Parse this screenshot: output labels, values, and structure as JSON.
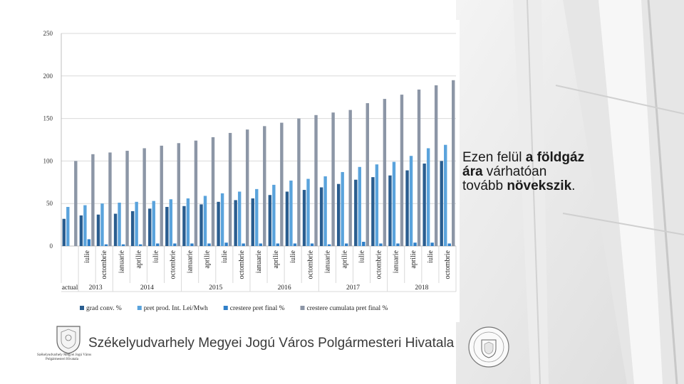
{
  "side_text": {
    "part1": "Ezen felül ",
    "bold1": "a földgáz",
    "bold2": "ára",
    "part2": " várhatóan",
    "part3": "tovább ",
    "bold3": "növekszik",
    "part4": "."
  },
  "footer": {
    "title": "Székelyudvarhely Megyei Jogú Város Polgármesteri Hivatala",
    "logo_caption_line1": "Székelyudvarhely Megyei Jogú Város",
    "logo_caption_line2": "Polgármesteri Hivatala"
  },
  "icons": {
    "left_logo": "city-crest-icon",
    "right_seal": "official-seal-icon"
  },
  "colors": {
    "grad_conv": "#2a5d8f",
    "pret_prod": "#5aa3dc",
    "crestere_pret_final": "#2f7fc8",
    "crestere_cumulata": "#8c96a6"
  },
  "chart_data": {
    "type": "bar",
    "ylim": [
      0,
      250
    ],
    "yticks": [
      0,
      50,
      100,
      150,
      200,
      250
    ],
    "grid": true,
    "legend_position": "bottom",
    "categories": [
      "actual",
      "iulie",
      "octombrie",
      "ianuarie",
      "aprilie",
      "iulie",
      "octombrie",
      "ianuarie",
      "aprilie",
      "iulie",
      "octombrie",
      "ianuarie",
      "aprilie",
      "iulie",
      "octombrie",
      "ianuarie",
      "aprilie",
      "iulie",
      "octombrie",
      "ianuarie",
      "aprilie",
      "iulie",
      "octombrie"
    ],
    "category_labels": [
      "",
      "iulie",
      "octombrie",
      "ianuarie",
      "aprilie",
      "iulie",
      "octombrie",
      "ianuarie",
      "aprilie",
      "iulie",
      "octombrie",
      "ianuarie",
      "aprilie",
      "iulie",
      "octombrie",
      "ianuarie",
      "aprilie",
      "iulie",
      "octombrie",
      "ianuarie",
      "aprilie",
      "iulie",
      "octombrie"
    ],
    "year_groups": [
      {
        "label": "actual",
        "start": 0,
        "end": 0
      },
      {
        "label": "2013",
        "start": 1,
        "end": 2
      },
      {
        "label": "2014",
        "start": 3,
        "end": 6
      },
      {
        "label": "2015",
        "start": 7,
        "end": 10
      },
      {
        "label": "2016",
        "start": 11,
        "end": 14
      },
      {
        "label": "2017",
        "start": 15,
        "end": 18
      },
      {
        "label": "2018",
        "start": 19,
        "end": 22
      }
    ],
    "series": [
      {
        "name": "grad conv. %",
        "values": [
          32,
          36,
          37,
          38,
          41,
          44,
          46,
          47,
          49,
          52,
          54,
          56,
          60,
          64,
          66,
          69,
          73,
          78,
          81,
          83,
          89,
          97,
          100
        ]
      },
      {
        "name": "pret prod. Int. Lei/Mwh",
        "values": [
          46,
          48,
          50,
          51,
          52,
          53,
          55,
          56,
          59,
          62,
          64,
          67,
          72,
          77,
          79,
          82,
          87,
          93,
          96,
          99,
          106,
          115,
          119
        ]
      },
      {
        "name": "crestere pret final %",
        "values": [
          0,
          8,
          2,
          2,
          2,
          3,
          3,
          3,
          3,
          4,
          3,
          3,
          3,
          3,
          3,
          2,
          3,
          5,
          3,
          3,
          4,
          4,
          3
        ]
      },
      {
        "name": "crestere cumulata pret final %",
        "values": [
          100,
          108,
          110,
          112,
          115,
          118,
          121,
          124,
          128,
          133,
          137,
          141,
          145,
          150,
          154,
          157,
          160,
          168,
          173,
          178,
          184,
          189,
          195
        ]
      }
    ]
  }
}
